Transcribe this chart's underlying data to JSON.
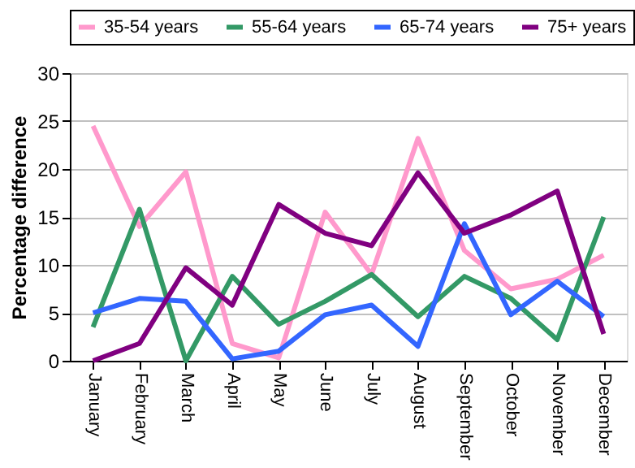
{
  "chart_data": {
    "type": "line",
    "ylabel": "Percentage difference",
    "categories": [
      "January",
      "February",
      "March",
      "April",
      "May",
      "June",
      "July",
      "August",
      "September",
      "October",
      "November",
      "December"
    ],
    "series": [
      {
        "name": "35-54 years",
        "color": "#ff99cc",
        "values": [
          24.5,
          14,
          19.7,
          1.8,
          0.3,
          15.5,
          9,
          23.2,
          11.5,
          7.5,
          8.5,
          11
        ]
      },
      {
        "name": "55-64 years",
        "color": "#339966",
        "values": [
          3.5,
          15.8,
          0,
          8.8,
          3.8,
          6.2,
          9,
          4.6,
          8.8,
          6.5,
          2.2,
          15
        ]
      },
      {
        "name": "65-74 years",
        "color": "#3366ff",
        "values": [
          5,
          6.5,
          6.2,
          0.2,
          1,
          4.8,
          5.8,
          1.5,
          14.3,
          4.8,
          8.3,
          4.6
        ]
      },
      {
        "name": "75+ years",
        "color": "#800080",
        "values": [
          0,
          1.8,
          9.7,
          5.8,
          16.3,
          13.3,
          12,
          19.6,
          13.3,
          15.2,
          17.7,
          2.8
        ]
      }
    ],
    "ylim": [
      0,
      30
    ],
    "yticks": [
      0,
      5,
      10,
      15,
      20,
      25,
      30
    ],
    "grid": "y",
    "legend": "top",
    "marker": "none",
    "line_style": "solid"
  }
}
